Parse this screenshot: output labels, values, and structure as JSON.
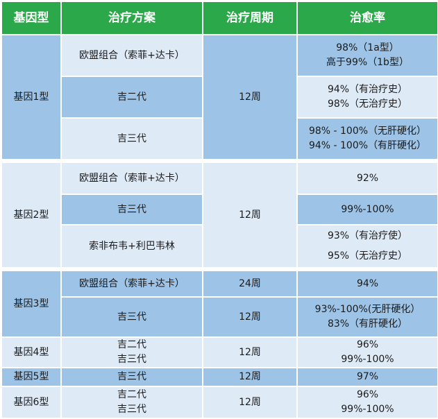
{
  "headers": {
    "genotype": "基因型",
    "plan": "治疗方案",
    "period": "治疗周期",
    "rate": "治愈率"
  },
  "g1": {
    "label": "基因1型",
    "period": "12周",
    "r1": {
      "plan": "欧盟组合（索菲+达卡）",
      "rate1": "98%（1a型）",
      "rate2": "高于99%（1b型）"
    },
    "r2": {
      "plan": "吉二代",
      "rate1": "94%（有治疗史）",
      "rate2": "98%（无治疗史）"
    },
    "r3": {
      "plan": "吉三代",
      "rate1": "98% - 100%（无肝硬化）",
      "rate2": "94% - 100%（有肝硬化）"
    }
  },
  "g2": {
    "label": "基因2型",
    "period": "12周",
    "r1": {
      "plan": "欧盟组合（索菲+达卡）",
      "rate": "92%"
    },
    "r2": {
      "plan": "吉三代",
      "rate": "99%-100%"
    },
    "r3": {
      "plan": "索非布韦+利巴韦林",
      "rate1": "93%（有治疗使）",
      "rate2": "95%（无治疗史）"
    }
  },
  "g3": {
    "label": "基因3型",
    "r1": {
      "plan": "欧盟组合（索菲+达卡）",
      "period": "24周",
      "rate": "94%"
    },
    "r2": {
      "plan": "吉三代",
      "period": "12周",
      "rate1": "93%-100%(无肝硬化）",
      "rate2": "83%（有肝硬化）"
    }
  },
  "g4": {
    "label": "基因4型",
    "plan1": "吉二代",
    "plan2": "吉三代",
    "period": "12周",
    "rate1": "96%",
    "rate2": "99%-100%"
  },
  "g5": {
    "label": "基因5型",
    "plan": "吉三代",
    "period": "12周",
    "rate": "97%"
  },
  "g6": {
    "label": "基因6型",
    "plan1": "吉二代",
    "plan2": "吉三代",
    "period": "12周",
    "rate1": "96%",
    "rate2": "99%-100%"
  },
  "colors": {
    "header_bg": "#2aa84a",
    "header_text": "#ffffff",
    "cell_dark": "#9dc3e6",
    "cell_light": "#deebf7"
  }
}
